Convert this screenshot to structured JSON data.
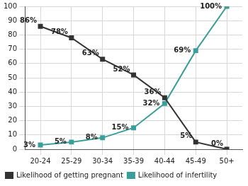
{
  "chart_data": {
    "type": "line",
    "categories": [
      "20-24",
      "25-29",
      "30-34",
      "35-39",
      "40-44",
      "45-49",
      "50+"
    ],
    "series": [
      {
        "name": "Likelihood of getting pregnant",
        "color": "#333333",
        "marker": "square",
        "line_style": "solid",
        "values": [
          86,
          78,
          63,
          52,
          36,
          5,
          0
        ],
        "value_labels": [
          "86%",
          "78%",
          "63%",
          "52%",
          "36%",
          "5%",
          "0%"
        ]
      },
      {
        "name": "Likelihood of infertility",
        "color": "#3a9e9a",
        "marker": "square",
        "line_style": "solid",
        "values": [
          3,
          5,
          8,
          15,
          32,
          69,
          100
        ],
        "value_labels": [
          "3%",
          "5%",
          "8%",
          "15%",
          "32%",
          "69%",
          "100%"
        ]
      }
    ],
    "ylim": [
      0,
      100
    ],
    "yticks": [
      0,
      10,
      20,
      30,
      40,
      50,
      60,
      70,
      80,
      90,
      100
    ],
    "grid": true,
    "legend": "bottom",
    "data_labels": true
  }
}
